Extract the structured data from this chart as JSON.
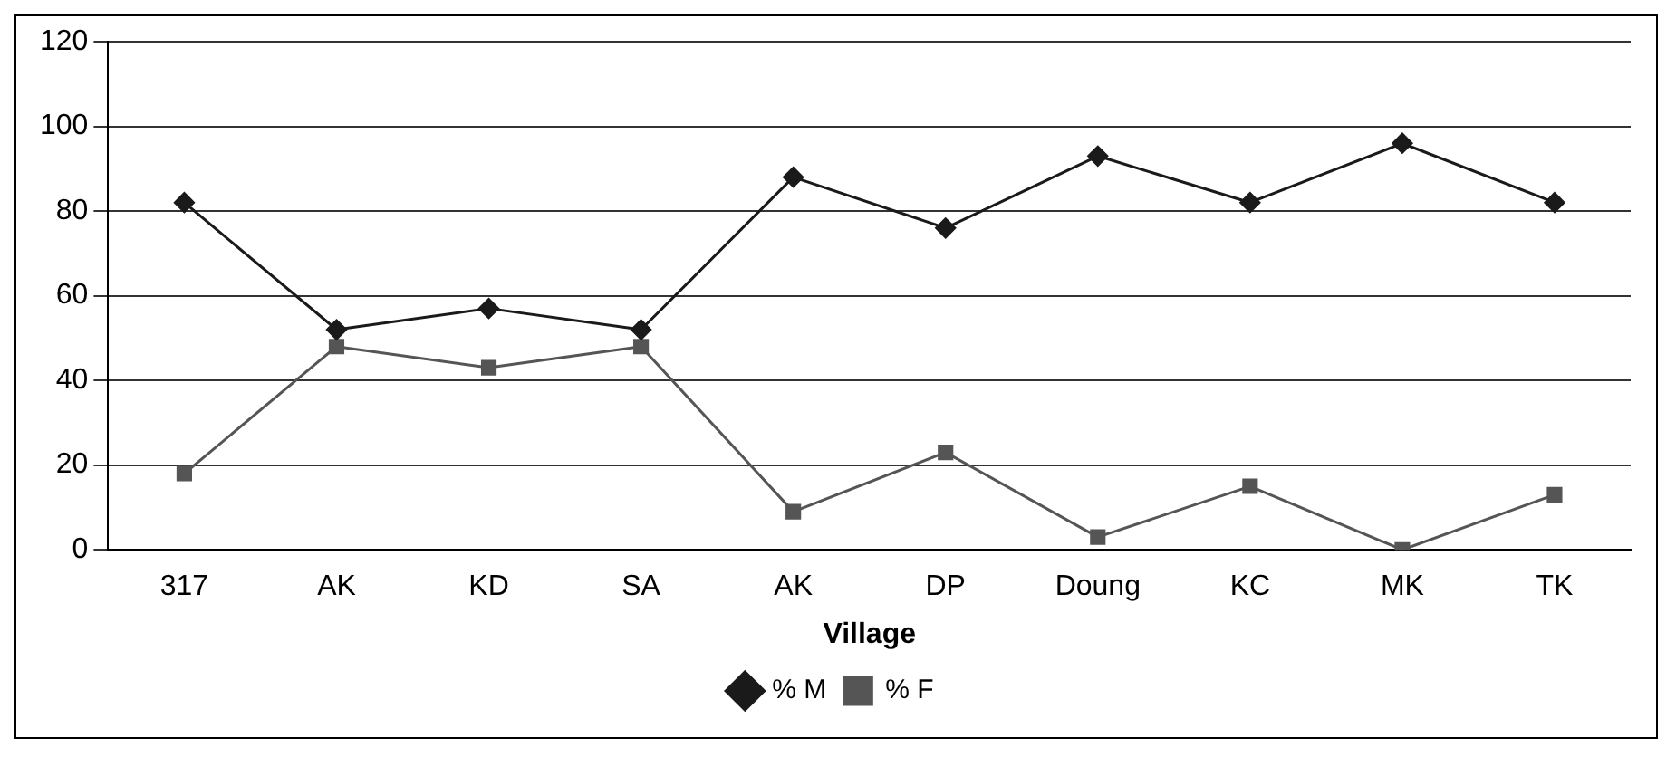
{
  "chart_data": {
    "type": "line",
    "xlabel": "Village",
    "categories": [
      "317",
      "AK",
      "KD",
      "SA",
      "AK",
      "DP",
      "Doung",
      "KC",
      "MK",
      "TK"
    ],
    "series": [
      {
        "name": "% M",
        "color": "#1a1a1a",
        "marker": "diamond",
        "values": [
          82,
          52,
          57,
          52,
          88,
          76,
          93,
          82,
          96,
          82
        ]
      },
      {
        "name": "% F",
        "color": "#555555",
        "marker": "square",
        "values": [
          18,
          48,
          43,
          48,
          9,
          23,
          3,
          15,
          0,
          13
        ]
      }
    ],
    "ylim": [
      0,
      120
    ],
    "yticks": [
      0,
      20,
      40,
      60,
      80,
      100,
      120
    ],
    "grid": "y",
    "legend": "bottom",
    "line_style": "solid"
  }
}
